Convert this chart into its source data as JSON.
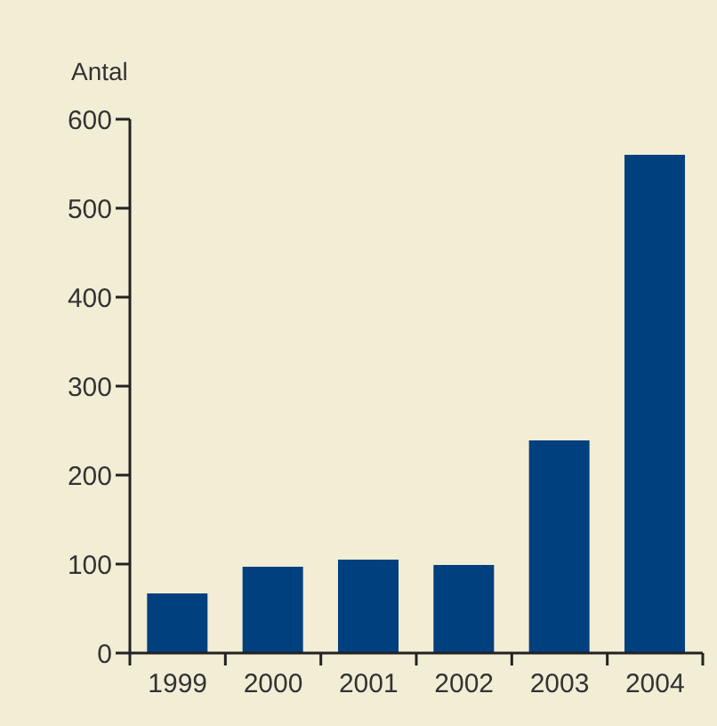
{
  "chart_data": {
    "type": "bar",
    "ylabel": "Antal",
    "categories": [
      "1999",
      "2000",
      "2001",
      "2002",
      "2003",
      "2004"
    ],
    "values": [
      67,
      97,
      105,
      99,
      239,
      560
    ],
    "color": "#00407f",
    "ylim": [
      0,
      600
    ],
    "yticks": [
      0,
      100,
      200,
      300,
      400,
      500,
      600
    ],
    "grid": false
  }
}
